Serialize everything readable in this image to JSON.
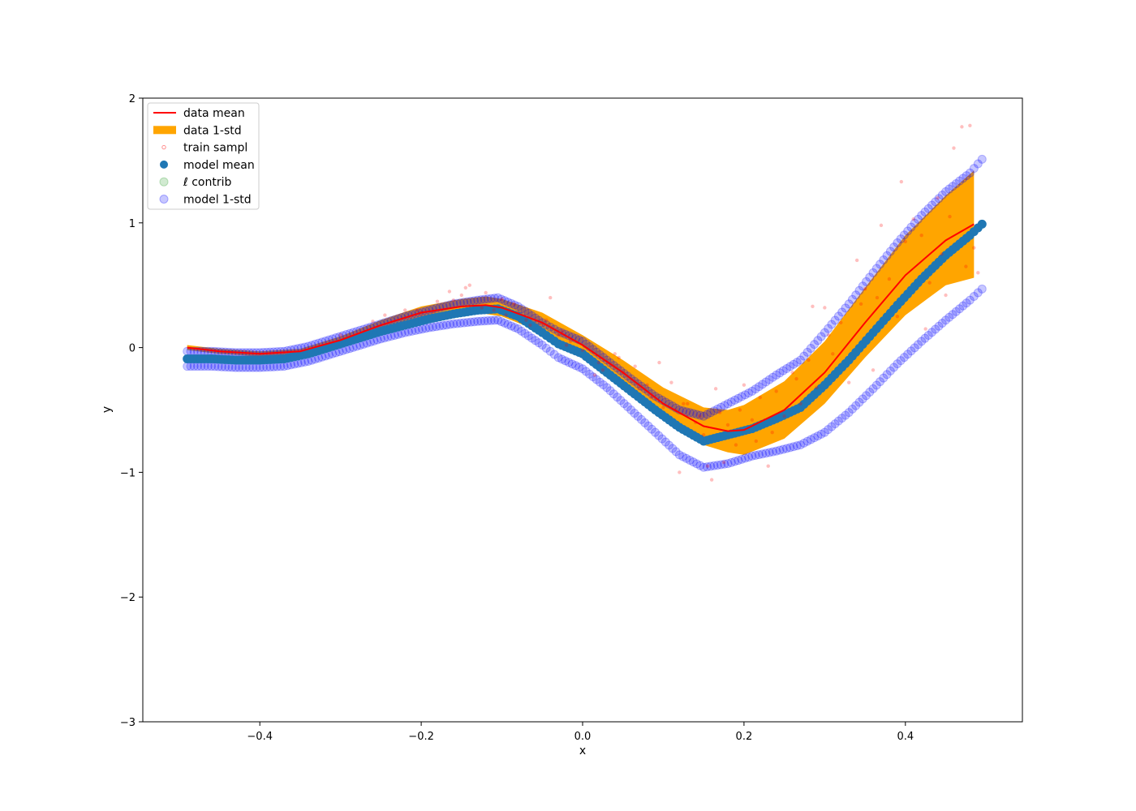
{
  "chart_data": {
    "type": "scatter",
    "xlabel": "x",
    "ylabel": "y",
    "xlim": [
      -0.545,
      0.545
    ],
    "ylim": [
      -3,
      2
    ],
    "xticks": [
      -0.4,
      -0.2,
      0.0,
      0.2,
      0.4
    ],
    "xtick_labels": [
      "−0.4",
      "−0.2",
      "0.0",
      "0.2",
      "0.4"
    ],
    "yticks": [
      -3,
      -2,
      -1,
      0,
      1,
      2
    ],
    "ytick_labels": [
      "−3",
      "−2",
      "−1",
      "0",
      "1",
      "2"
    ],
    "grid": false,
    "legend_position": "upper-left",
    "legend": [
      {
        "label": "data mean",
        "kind": "line",
        "color": "#ff0000"
      },
      {
        "label": "data 1-std",
        "kind": "patch",
        "color": "#ffa500"
      },
      {
        "label": "train sampl",
        "kind": "marker-small",
        "color": "#ff0000"
      },
      {
        "label": "model mean",
        "kind": "marker",
        "color": "#1f77b4"
      },
      {
        "label": "ℓ contrib",
        "kind": "marker-light",
        "color": "#2ca02c"
      },
      {
        "label": "model 1-std",
        "kind": "marker-light",
        "color": "#0000ff"
      }
    ],
    "series": [
      {
        "name": "data mean",
        "kind": "line",
        "color": "#ff0000",
        "x": [
          -0.49,
          -0.45,
          -0.4,
          -0.35,
          -0.3,
          -0.25,
          -0.2,
          -0.15,
          -0.12,
          -0.1,
          -0.05,
          0.0,
          0.05,
          0.1,
          0.15,
          0.18,
          0.2,
          0.25,
          0.3,
          0.35,
          0.4,
          0.45,
          0.485
        ],
        "y": [
          0.0,
          -0.03,
          -0.05,
          -0.03,
          0.06,
          0.18,
          0.28,
          0.33,
          0.34,
          0.32,
          0.2,
          0.02,
          -0.2,
          -0.45,
          -0.63,
          -0.67,
          -0.66,
          -0.5,
          -0.2,
          0.2,
          0.58,
          0.86,
          0.99
        ]
      },
      {
        "name": "data 1-std",
        "kind": "band",
        "color": "#ffa500",
        "x": [
          -0.49,
          -0.45,
          -0.4,
          -0.35,
          -0.3,
          -0.25,
          -0.2,
          -0.15,
          -0.12,
          -0.1,
          -0.05,
          0.0,
          0.05,
          0.1,
          0.15,
          0.18,
          0.2,
          0.25,
          0.3,
          0.35,
          0.4,
          0.45,
          0.485
        ],
        "upper": [
          0.02,
          -0.01,
          -0.03,
          -0.01,
          0.09,
          0.22,
          0.33,
          0.39,
          0.41,
          0.39,
          0.28,
          0.1,
          -0.1,
          -0.32,
          -0.48,
          -0.5,
          -0.46,
          -0.27,
          0.05,
          0.48,
          0.9,
          1.22,
          1.42
        ],
        "lower": [
          -0.02,
          -0.05,
          -0.07,
          -0.05,
          0.03,
          0.14,
          0.23,
          0.27,
          0.27,
          0.25,
          0.12,
          -0.06,
          -0.3,
          -0.58,
          -0.78,
          -0.84,
          -0.86,
          -0.73,
          -0.45,
          -0.08,
          0.26,
          0.5,
          0.56
        ]
      },
      {
        "name": "model mean",
        "kind": "points",
        "color": "#1f77b4",
        "x": [
          -0.49,
          -0.46,
          -0.43,
          -0.4,
          -0.37,
          -0.34,
          -0.31,
          -0.28,
          -0.25,
          -0.22,
          -0.19,
          -0.16,
          -0.13,
          -0.105,
          -0.08,
          -0.05,
          -0.03,
          0.0,
          0.03,
          0.06,
          0.09,
          0.12,
          0.15,
          0.18,
          0.21,
          0.24,
          0.27,
          0.3,
          0.33,
          0.36,
          0.39,
          0.42,
          0.45,
          0.48,
          0.495
        ],
        "y": [
          -0.09,
          -0.09,
          -0.1,
          -0.1,
          -0.09,
          -0.05,
          0.01,
          0.07,
          0.13,
          0.18,
          0.23,
          0.27,
          0.3,
          0.31,
          0.25,
          0.12,
          0.03,
          -0.05,
          -0.2,
          -0.35,
          -0.5,
          -0.64,
          -0.75,
          -0.7,
          -0.65,
          -0.57,
          -0.48,
          -0.3,
          -0.1,
          0.12,
          0.34,
          0.55,
          0.74,
          0.9,
          0.99
        ]
      },
      {
        "name": "model 1-std upper",
        "kind": "points-light",
        "color": "#0000ff",
        "x": [
          -0.49,
          -0.46,
          -0.43,
          -0.4,
          -0.37,
          -0.34,
          -0.31,
          -0.28,
          -0.25,
          -0.22,
          -0.19,
          -0.16,
          -0.13,
          -0.105,
          -0.08,
          -0.05,
          -0.03,
          0.0,
          0.03,
          0.06,
          0.09,
          0.12,
          0.15,
          0.18,
          0.21,
          0.24,
          0.27,
          0.3,
          0.33,
          0.36,
          0.39,
          0.42,
          0.45,
          0.48,
          0.495
        ],
        "y": [
          -0.03,
          -0.03,
          -0.04,
          -0.04,
          -0.03,
          0.01,
          0.07,
          0.13,
          0.19,
          0.25,
          0.3,
          0.35,
          0.38,
          0.4,
          0.33,
          0.2,
          0.13,
          0.05,
          -0.1,
          -0.25,
          -0.39,
          -0.5,
          -0.55,
          -0.45,
          -0.35,
          -0.22,
          -0.1,
          0.12,
          0.35,
          0.6,
          0.84,
          1.06,
          1.25,
          1.4,
          1.51
        ]
      },
      {
        "name": "model 1-std lower",
        "kind": "points-light",
        "color": "#0000ff",
        "x": [
          -0.49,
          -0.46,
          -0.43,
          -0.4,
          -0.37,
          -0.34,
          -0.31,
          -0.28,
          -0.25,
          -0.22,
          -0.19,
          -0.16,
          -0.13,
          -0.105,
          -0.08,
          -0.05,
          -0.03,
          0.0,
          0.03,
          0.06,
          0.09,
          0.12,
          0.15,
          0.18,
          0.21,
          0.24,
          0.27,
          0.3,
          0.33,
          0.36,
          0.39,
          0.42,
          0.45,
          0.48,
          0.495
        ],
        "y": [
          -0.15,
          -0.15,
          -0.16,
          -0.16,
          -0.15,
          -0.11,
          -0.05,
          0.01,
          0.07,
          0.12,
          0.16,
          0.19,
          0.21,
          0.22,
          0.15,
          0.02,
          -0.08,
          -0.17,
          -0.32,
          -0.5,
          -0.68,
          -0.86,
          -0.96,
          -0.93,
          -0.87,
          -0.83,
          -0.78,
          -0.68,
          -0.52,
          -0.33,
          -0.13,
          0.05,
          0.22,
          0.38,
          0.47
        ]
      },
      {
        "name": "train sampl",
        "kind": "samples",
        "color": "#ff0000",
        "x": [
          -0.3,
          -0.26,
          -0.22,
          -0.2,
          -0.18,
          -0.16,
          -0.15,
          -0.14,
          -0.12,
          -0.11,
          -0.1,
          -0.08,
          -0.07,
          -0.05,
          -0.04,
          -0.03,
          -0.02,
          0.0,
          0.02,
          0.04,
          0.05,
          0.07,
          0.08,
          0.1,
          0.11,
          0.12,
          0.13,
          0.14,
          0.15,
          0.16,
          0.17,
          0.18,
          0.19,
          0.2,
          0.21,
          0.22,
          0.23,
          0.24,
          0.25,
          0.26,
          0.27,
          0.28,
          0.29,
          0.3,
          0.31,
          0.32,
          0.33,
          0.34,
          0.35,
          0.36,
          0.37,
          0.38,
          0.39,
          0.4,
          0.41,
          0.42,
          0.43,
          0.44,
          0.45,
          0.46,
          0.47,
          0.48,
          0.49,
          0.475,
          0.485,
          0.455,
          0.445,
          0.425,
          0.395,
          0.365,
          0.345,
          0.305,
          0.285,
          0.265,
          0.235,
          0.215,
          0.195,
          0.175,
          0.165,
          0.155,
          0.145,
          0.125,
          0.115,
          0.095,
          0.085,
          0.065,
          0.045,
          0.025,
          0.015,
          -0.015,
          -0.025,
          -0.045,
          -0.065,
          -0.085,
          -0.095,
          -0.125,
          -0.145,
          -0.165,
          -0.185,
          -0.205,
          -0.245
        ],
        "y": [
          0.1,
          0.21,
          0.3,
          0.28,
          0.37,
          0.38,
          0.42,
          0.5,
          0.44,
          0.3,
          0.39,
          0.28,
          0.22,
          0.19,
          0.4,
          0.1,
          0.02,
          -0.02,
          -0.12,
          -0.05,
          -0.2,
          -0.33,
          -0.3,
          -0.48,
          -0.28,
          -1.0,
          -0.45,
          -0.6,
          -0.7,
          -1.06,
          -0.52,
          -0.62,
          -0.78,
          -0.3,
          -0.58,
          -0.4,
          -0.95,
          -0.35,
          -0.55,
          -0.2,
          -0.45,
          -0.1,
          -0.32,
          0.32,
          -0.05,
          0.2,
          -0.28,
          0.7,
          0.47,
          -0.18,
          0.98,
          0.55,
          0.25,
          0.85,
          1.03,
          0.9,
          0.52,
          1.2,
          0.42,
          1.6,
          1.77,
          1.78,
          0.6,
          0.65,
          0.8,
          1.05,
          0.75,
          0.15,
          1.33,
          0.4,
          0.35,
          0.1,
          0.33,
          -0.25,
          -0.68,
          -0.75,
          -0.5,
          -0.92,
          -0.33,
          -0.95,
          -0.55,
          -0.45,
          -0.5,
          -0.12,
          -0.4,
          -0.15,
          -0.08,
          -0.18,
          -0.22,
          0.05,
          0.13,
          0.22,
          0.18,
          0.35,
          0.26,
          0.32,
          0.48,
          0.45,
          0.29,
          0.3,
          0.26
        ]
      }
    ]
  }
}
